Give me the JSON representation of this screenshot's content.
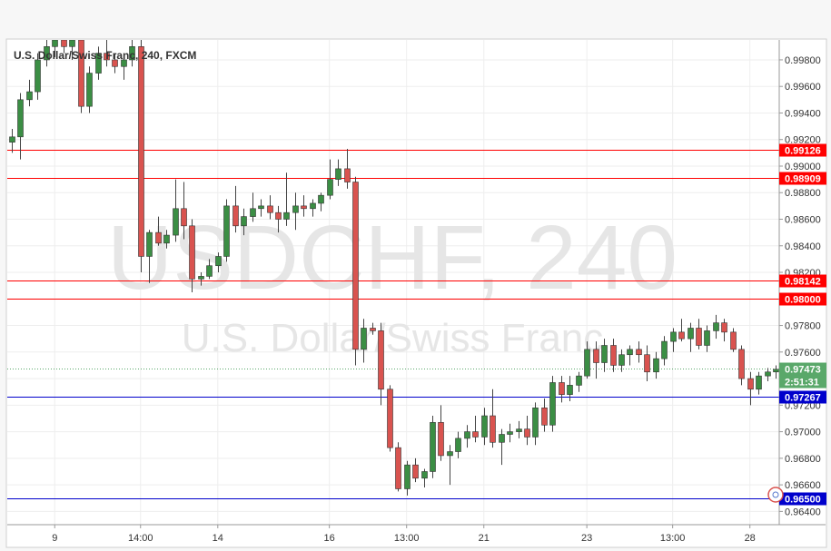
{
  "chart_title": "U.S. Dollar/Swiss Franc, 240, FXCM",
  "watermark": {
    "symbol": "USDCHF, 240",
    "name": "U.S. Dollar/Swiss Franc"
  },
  "colors": {
    "up": "#3b8e44",
    "down": "#d9534f",
    "red_level": "#ff0000",
    "blue_level": "#0000cc",
    "current": "#5aa86a",
    "grid": "#eeeeee"
  },
  "chart_data": {
    "type": "candlestick",
    "title": "U.S. Dollar/Swiss Franc, 240, FXCM",
    "ylim": [
      0.963,
      0.9995
    ],
    "y_ticks": [
      "0.96400",
      "0.96600",
      "0.96800",
      "0.97000",
      "0.97200",
      "0.97400",
      "0.97600",
      "0.97800",
      "0.98000",
      "0.98200",
      "0.98400",
      "0.98600",
      "0.98800",
      "0.99000",
      "0.99200",
      "0.99400",
      "0.99600",
      "0.99800"
    ],
    "x_tick_labels": [
      {
        "label": "9",
        "bar": 5
      },
      {
        "label": "14:00",
        "bar": 15
      },
      {
        "label": "14",
        "bar": 24
      },
      {
        "label": "16",
        "bar": 37
      },
      {
        "label": "13:00",
        "bar": 46
      },
      {
        "label": "21",
        "bar": 55
      },
      {
        "label": "23",
        "bar": 67
      },
      {
        "label": "13:00",
        "bar": 77
      },
      {
        "label": "28",
        "bar": 86
      }
    ],
    "ohlc": [
      [
        0.9918,
        0.9928,
        0.991,
        0.9922
      ],
      [
        0.9922,
        0.9955,
        0.9905,
        0.995
      ],
      [
        0.995,
        0.9965,
        0.9945,
        0.9956
      ],
      [
        0.9956,
        0.9985,
        0.995,
        0.998
      ],
      [
        0.998,
        0.9995,
        0.9975,
        0.999
      ],
      [
        0.999,
        0.9998,
        0.9982,
        0.9995
      ],
      [
        0.9995,
        1.0,
        0.9985,
        0.999
      ],
      [
        0.999,
        1.0,
        0.998,
        0.9995
      ],
      [
        0.9995,
        1.0,
        0.994,
        0.9945
      ],
      [
        0.9945,
        0.9975,
        0.994,
        0.997
      ],
      [
        0.997,
        0.999,
        0.9965,
        0.9985
      ],
      [
        0.9985,
        0.9995,
        0.9975,
        0.998
      ],
      [
        0.998,
        0.9985,
        0.997,
        0.9975
      ],
      [
        0.9975,
        0.9985,
        0.9965,
        0.998
      ],
      [
        0.998,
        0.9995,
        0.9975,
        0.999
      ],
      [
        0.999,
        1.0,
        0.982,
        0.9832
      ],
      [
        0.9832,
        0.9852,
        0.9812,
        0.985
      ],
      [
        0.985,
        0.9862,
        0.984,
        0.9842
      ],
      [
        0.9842,
        0.9852,
        0.9838,
        0.9848
      ],
      [
        0.9848,
        0.989,
        0.9843,
        0.9868
      ],
      [
        0.9868,
        0.9888,
        0.9845,
        0.9855
      ],
      [
        0.9855,
        0.986,
        0.9805,
        0.9815
      ],
      [
        0.9815,
        0.982,
        0.981,
        0.9817
      ],
      [
        0.9817,
        0.983,
        0.9815,
        0.9825
      ],
      [
        0.9825,
        0.9835,
        0.982,
        0.9832
      ],
      [
        0.9832,
        0.9875,
        0.9828,
        0.987
      ],
      [
        0.987,
        0.9885,
        0.985,
        0.9855
      ],
      [
        0.9855,
        0.9868,
        0.9848,
        0.9862
      ],
      [
        0.9862,
        0.988,
        0.9858,
        0.9868
      ],
      [
        0.9868,
        0.9875,
        0.9862,
        0.987
      ],
      [
        0.987,
        0.9878,
        0.986,
        0.9865
      ],
      [
        0.9865,
        0.987,
        0.985,
        0.986
      ],
      [
        0.986,
        0.9895,
        0.9855,
        0.9865
      ],
      [
        0.9865,
        0.988,
        0.9852,
        0.987
      ],
      [
        0.987,
        0.9878,
        0.9862,
        0.9868
      ],
      [
        0.9868,
        0.9875,
        0.9862,
        0.9872
      ],
      [
        0.9872,
        0.988,
        0.9866,
        0.9878
      ],
      [
        0.9878,
        0.9905,
        0.9875,
        0.989
      ],
      [
        0.989,
        0.9905,
        0.9885,
        0.9898
      ],
      [
        0.9898,
        0.9913,
        0.9883,
        0.9888
      ],
      [
        0.9888,
        0.9892,
        0.975,
        0.9762
      ],
      [
        0.9762,
        0.9785,
        0.9752,
        0.9778
      ],
      [
        0.9778,
        0.9782,
        0.9773,
        0.9776
      ],
      [
        0.9776,
        0.9782,
        0.972,
        0.9732
      ],
      [
        0.9732,
        0.9735,
        0.9685,
        0.9688
      ],
      [
        0.9688,
        0.9692,
        0.9655,
        0.9657
      ],
      [
        0.9657,
        0.9678,
        0.9652,
        0.9675
      ],
      [
        0.9675,
        0.968,
        0.9662,
        0.9665
      ],
      [
        0.9665,
        0.9672,
        0.9658,
        0.967
      ],
      [
        0.967,
        0.9712,
        0.9665,
        0.9707
      ],
      [
        0.9707,
        0.972,
        0.9678,
        0.9682
      ],
      [
        0.9682,
        0.969,
        0.966,
        0.9685
      ],
      [
        0.9685,
        0.97,
        0.968,
        0.9695
      ],
      [
        0.9695,
        0.9705,
        0.9688,
        0.97
      ],
      [
        0.97,
        0.9712,
        0.9692,
        0.9696
      ],
      [
        0.9696,
        0.9718,
        0.969,
        0.9712
      ],
      [
        0.9712,
        0.9732,
        0.9688,
        0.9692
      ],
      [
        0.9692,
        0.9702,
        0.9675,
        0.9698
      ],
      [
        0.9698,
        0.9706,
        0.9692,
        0.97
      ],
      [
        0.97,
        0.9708,
        0.9695,
        0.9702
      ],
      [
        0.9702,
        0.9712,
        0.969,
        0.9696
      ],
      [
        0.9696,
        0.9722,
        0.969,
        0.9718
      ],
      [
        0.9718,
        0.9725,
        0.97,
        0.9705
      ],
      [
        0.9705,
        0.9742,
        0.97,
        0.9737
      ],
      [
        0.9737,
        0.9742,
        0.9722,
        0.9728
      ],
      [
        0.9728,
        0.9742,
        0.9723,
        0.9735
      ],
      [
        0.9735,
        0.9745,
        0.973,
        0.9742
      ],
      [
        0.9742,
        0.9768,
        0.974,
        0.9762
      ],
      [
        0.9762,
        0.9768,
        0.974,
        0.9752
      ],
      [
        0.9752,
        0.977,
        0.9745,
        0.9765
      ],
      [
        0.9765,
        0.977,
        0.9745,
        0.975
      ],
      [
        0.975,
        0.9762,
        0.9745,
        0.9758
      ],
      [
        0.9758,
        0.9765,
        0.975,
        0.9762
      ],
      [
        0.9762,
        0.9768,
        0.9752,
        0.9758
      ],
      [
        0.9758,
        0.9765,
        0.9738,
        0.9745
      ],
      [
        0.9745,
        0.976,
        0.974,
        0.9755
      ],
      [
        0.9755,
        0.9772,
        0.975,
        0.9768
      ],
      [
        0.9768,
        0.9778,
        0.976,
        0.9775
      ],
      [
        0.9775,
        0.9785,
        0.9768,
        0.977
      ],
      [
        0.977,
        0.9782,
        0.976,
        0.9778
      ],
      [
        0.9778,
        0.9785,
        0.9762,
        0.9765
      ],
      [
        0.9765,
        0.978,
        0.976,
        0.9776
      ],
      [
        0.9776,
        0.9788,
        0.977,
        0.9782
      ],
      [
        0.9782,
        0.9785,
        0.9768,
        0.9775
      ],
      [
        0.9775,
        0.9778,
        0.976,
        0.9762
      ],
      [
        0.9762,
        0.9765,
        0.9735,
        0.974
      ],
      [
        0.974,
        0.9745,
        0.972,
        0.9732
      ],
      [
        0.9732,
        0.9745,
        0.9728,
        0.9742
      ],
      [
        0.9742,
        0.9748,
        0.9738,
        0.9745
      ],
      [
        0.9745,
        0.975,
        0.974,
        0.9747
      ]
    ],
    "levels": [
      {
        "value": 0.99126,
        "label": "0.99126",
        "color": "red"
      },
      {
        "value": 0.98909,
        "label": "0.98909",
        "color": "red"
      },
      {
        "value": 0.98142,
        "label": "0.98142",
        "color": "red"
      },
      {
        "value": 0.98,
        "label": "0.98000",
        "color": "red"
      },
      {
        "value": 0.97267,
        "label": "0.97267",
        "color": "blue"
      },
      {
        "value": 0.965,
        "label": "0.96500",
        "color": "blue"
      }
    ],
    "current": {
      "value": 0.97473,
      "label": "0.97473",
      "countdown": "2:51:31"
    }
  }
}
